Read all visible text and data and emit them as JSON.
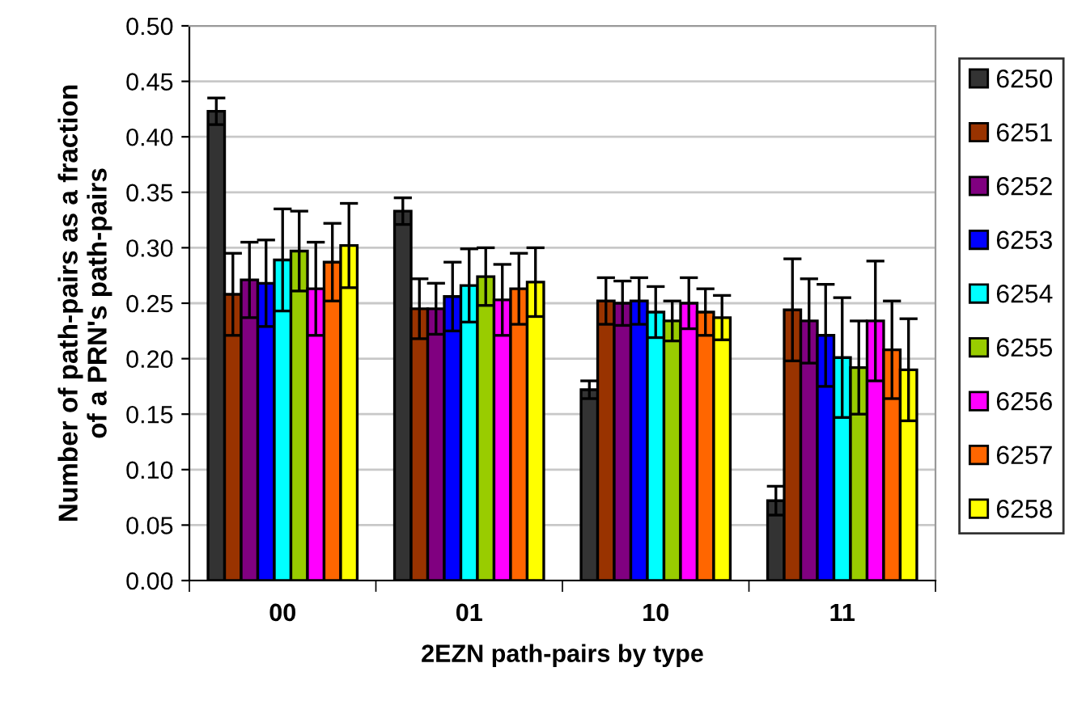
{
  "chart_data": {
    "type": "bar",
    "xlabel": "2EZN path-pairs by type",
    "ylabel": "Number of path-pairs as a fraction\nof a PRN's path-pairs",
    "categories": [
      "00",
      "01",
      "10",
      "11"
    ],
    "series": [
      {
        "name": "6250",
        "color": "#333333",
        "values": [
          0.423,
          0.333,
          0.172,
          0.072
        ],
        "errors": [
          0.012,
          0.012,
          0.008,
          0.013
        ]
      },
      {
        "name": "6251",
        "color": "#993300",
        "values": [
          0.258,
          0.245,
          0.252,
          0.244
        ],
        "errors": [
          0.037,
          0.027,
          0.021,
          0.046
        ]
      },
      {
        "name": "6252",
        "color": "#800080",
        "values": [
          0.271,
          0.245,
          0.25,
          0.234
        ],
        "errors": [
          0.034,
          0.023,
          0.02,
          0.038
        ]
      },
      {
        "name": "6253",
        "color": "#0000ff",
        "values": [
          0.268,
          0.256,
          0.252,
          0.221
        ],
        "errors": [
          0.039,
          0.031,
          0.021,
          0.046
        ]
      },
      {
        "name": "6254",
        "color": "#00ffff",
        "values": [
          0.289,
          0.266,
          0.242,
          0.201
        ],
        "errors": [
          0.046,
          0.033,
          0.023,
          0.054
        ]
      },
      {
        "name": "6255",
        "color": "#99cc00",
        "values": [
          0.297,
          0.274,
          0.234,
          0.192
        ],
        "errors": [
          0.036,
          0.026,
          0.018,
          0.042
        ]
      },
      {
        "name": "6256",
        "color": "#ff00ff",
        "values": [
          0.263,
          0.253,
          0.25,
          0.234
        ],
        "errors": [
          0.042,
          0.032,
          0.023,
          0.054
        ]
      },
      {
        "name": "6257",
        "color": "#ff6600",
        "values": [
          0.287,
          0.263,
          0.242,
          0.208
        ],
        "errors": [
          0.035,
          0.032,
          0.021,
          0.044
        ]
      },
      {
        "name": "6258",
        "color": "#ffff00",
        "values": [
          0.302,
          0.269,
          0.237,
          0.19
        ],
        "errors": [
          0.038,
          0.031,
          0.02,
          0.046
        ]
      }
    ],
    "ylim": [
      0,
      0.5
    ],
    "yticks": [
      {
        "value": 0,
        "label": "0.00"
      },
      {
        "value": 0.05,
        "label": "0.05"
      },
      {
        "value": 0.1,
        "label": "0.10"
      },
      {
        "value": 0.15,
        "label": "0.15"
      },
      {
        "value": 0.2,
        "label": "0.20"
      },
      {
        "value": 0.25,
        "label": "0.25"
      },
      {
        "value": 0.3,
        "label": "0.30"
      },
      {
        "value": 0.35,
        "label": "0.35"
      },
      {
        "value": 0.4,
        "label": "0.40"
      },
      {
        "value": 0.45,
        "label": "0.45"
      },
      {
        "value": 0.5,
        "label": "0.50"
      }
    ],
    "grid": "y",
    "legend": "right"
  }
}
